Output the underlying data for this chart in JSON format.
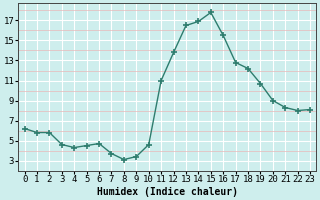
{
  "x": [
    0,
    1,
    2,
    3,
    4,
    5,
    6,
    7,
    8,
    9,
    10,
    11,
    12,
    13,
    14,
    15,
    16,
    17,
    18,
    19,
    20,
    21,
    22,
    23
  ],
  "y": [
    6.2,
    5.8,
    5.8,
    4.6,
    4.3,
    4.5,
    4.7,
    3.7,
    3.1,
    3.4,
    4.6,
    11.0,
    13.8,
    16.5,
    16.9,
    17.8,
    15.5,
    12.8,
    12.2,
    10.7,
    9.0,
    8.3,
    8.0,
    8.1
  ],
  "line_color": "#2e7d6e",
  "marker": "+",
  "marker_size": 4,
  "marker_lw": 1.2,
  "bg_color": "#ceeeed",
  "grid_color_major": "#ffffff",
  "grid_color_minor": "#e8b8b8",
  "xlabel": "Humidex (Indice chaleur)",
  "xlabel_fontsize": 7,
  "tick_fontsize": 6.5,
  "xlim": [
    -0.5,
    23.5
  ],
  "ylim": [
    2.0,
    18.7
  ],
  "yticks": [
    3,
    5,
    7,
    9,
    11,
    13,
    15,
    17
  ],
  "xticks": [
    0,
    1,
    2,
    3,
    4,
    5,
    6,
    7,
    8,
    9,
    10,
    11,
    12,
    13,
    14,
    15,
    16,
    17,
    18,
    19,
    20,
    21,
    22,
    23
  ],
  "line_width": 1.0
}
